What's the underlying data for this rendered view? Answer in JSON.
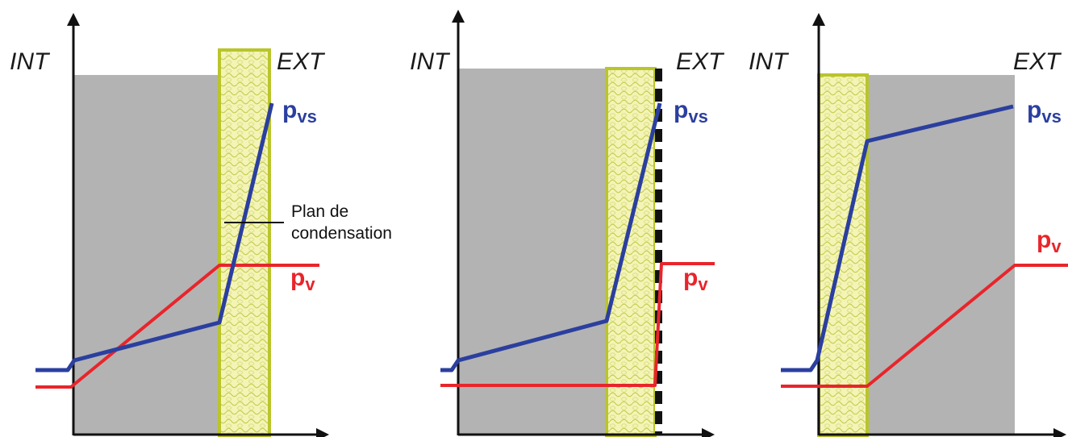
{
  "colors": {
    "wall": "#b3b3b3",
    "insulation": "#f4f4b6",
    "insulation_border": "#b9c52b",
    "saturation_curve": "#2b3f9f",
    "vapor_curve": "#e8252b",
    "axis": "#111111"
  },
  "labels": {
    "int": "INT",
    "ext": "EXT",
    "pvs_main": "p",
    "pvs_sub": "vs",
    "pv_main": "p",
    "pv_sub": "v",
    "annotation_line1": "Plan de",
    "annotation_line2": "condensation"
  },
  "panels": [
    {
      "id": "panel-1",
      "layers": [
        "wall",
        "insulation"
      ],
      "vapor_barrier": false,
      "annotation": true
    },
    {
      "id": "panel-2",
      "layers": [
        "wall",
        "insulation"
      ],
      "vapor_barrier": true,
      "annotation": false
    },
    {
      "id": "panel-3",
      "layers": [
        "insulation",
        "wall"
      ],
      "vapor_barrier": false,
      "annotation": false
    }
  ]
}
